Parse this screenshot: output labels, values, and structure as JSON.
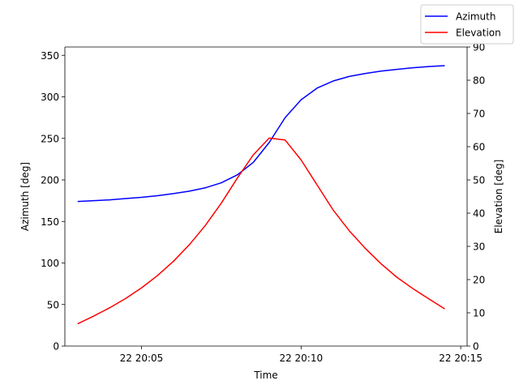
{
  "chart_data": {
    "type": "line",
    "title": "",
    "xlabel": "Time",
    "ylabel_left": "Azimuth [deg]",
    "ylabel_right": "Elevation [deg]",
    "x_unit": "time of day (day 22), minutes after 20:00",
    "xlim": [
      2.6,
      15.2
    ],
    "xticks": [
      {
        "value": 5,
        "label": "22 20:05"
      },
      {
        "value": 10,
        "label": "22 20:10"
      },
      {
        "value": 15,
        "label": "22 20:15"
      }
    ],
    "ylim_left": [
      0,
      360
    ],
    "yticks_left": [
      0,
      50,
      100,
      150,
      200,
      250,
      300,
      350
    ],
    "ylim_right": [
      0,
      90
    ],
    "yticks_right": [
      0,
      10,
      20,
      30,
      40,
      50,
      60,
      70,
      80,
      90
    ],
    "grid": false,
    "legend_position": "top-right",
    "series": [
      {
        "name": "Azimuth",
        "axis": "left",
        "color": "#0000ff",
        "points": [
          [
            3.0,
            174
          ],
          [
            3.5,
            175
          ],
          [
            4.0,
            176
          ],
          [
            4.5,
            177.5
          ],
          [
            5.0,
            179
          ],
          [
            5.5,
            181
          ],
          [
            6.0,
            183.5
          ],
          [
            6.5,
            186.5
          ],
          [
            7.0,
            190.5
          ],
          [
            7.5,
            196.5
          ],
          [
            8.0,
            206
          ],
          [
            8.5,
            221
          ],
          [
            9.0,
            245
          ],
          [
            9.5,
            275
          ],
          [
            10.0,
            296.5
          ],
          [
            10.5,
            310.5
          ],
          [
            11.0,
            319
          ],
          [
            11.5,
            324.5
          ],
          [
            12.0,
            328
          ],
          [
            12.5,
            331
          ],
          [
            13.0,
            333
          ],
          [
            13.5,
            335
          ],
          [
            14.0,
            336.5
          ],
          [
            14.5,
            337.5
          ]
        ]
      },
      {
        "name": "Elevation",
        "axis": "right",
        "color": "#ff0000",
        "points": [
          [
            3.0,
            6.7
          ],
          [
            3.5,
            9
          ],
          [
            4.0,
            11.5
          ],
          [
            4.5,
            14.3
          ],
          [
            5.0,
            17.5
          ],
          [
            5.5,
            21.2
          ],
          [
            6.0,
            25.5
          ],
          [
            6.5,
            30.5
          ],
          [
            7.0,
            36.3
          ],
          [
            7.5,
            43
          ],
          [
            8.0,
            50.5
          ],
          [
            8.5,
            57.5
          ],
          [
            9.0,
            62.6
          ],
          [
            9.5,
            62
          ],
          [
            10.0,
            56
          ],
          [
            10.5,
            48.5
          ],
          [
            11.0,
            41
          ],
          [
            11.5,
            34.8
          ],
          [
            12.0,
            29.5
          ],
          [
            12.5,
            24.8
          ],
          [
            13.0,
            20.7
          ],
          [
            13.5,
            17.3
          ],
          [
            14.0,
            14.2
          ],
          [
            14.5,
            11.2
          ]
        ]
      }
    ]
  }
}
